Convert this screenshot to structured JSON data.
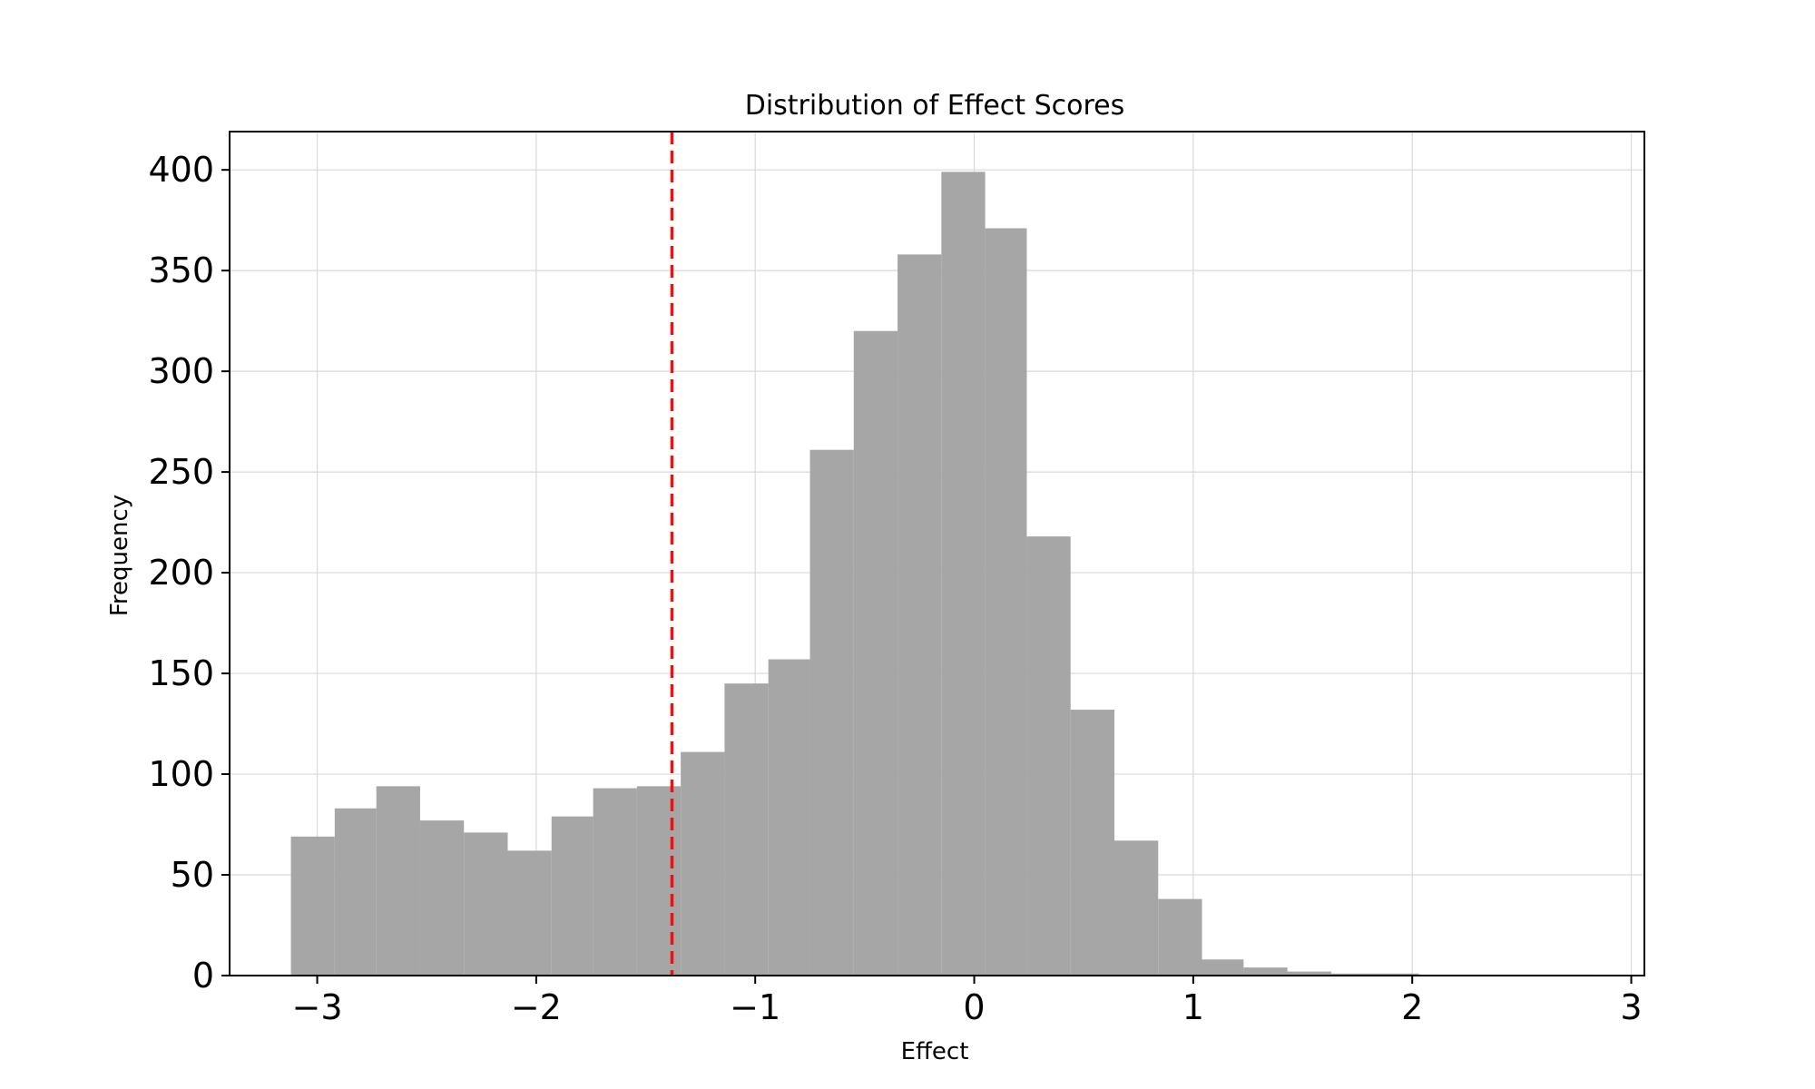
{
  "chart_data": {
    "type": "bar",
    "title": "Distribution of Effect Scores",
    "xlabel": "Effect",
    "ylabel": "Frequency",
    "xlim": [
      -3.4,
      3.06
    ],
    "ylim": [
      0,
      419
    ],
    "x_ticks": [
      -3,
      -2,
      -1,
      0,
      1,
      2,
      3
    ],
    "x_tick_labels": [
      "−3",
      "−2",
      "−1",
      "0",
      "1",
      "2",
      "3"
    ],
    "y_ticks": [
      0,
      50,
      100,
      150,
      200,
      250,
      300,
      350,
      400
    ],
    "y_tick_labels": [
      "0",
      "50",
      "100",
      "150",
      "200",
      "250",
      "300",
      "350",
      "400"
    ],
    "grid": true,
    "bar_color": "#a6a6a6",
    "bins": [
      {
        "x0": -3.12,
        "x1": -2.92,
        "value": 69
      },
      {
        "x0": -2.92,
        "x1": -2.73,
        "value": 83
      },
      {
        "x0": -2.73,
        "x1": -2.53,
        "value": 94
      },
      {
        "x0": -2.53,
        "x1": -2.33,
        "value": 77
      },
      {
        "x0": -2.33,
        "x1": -2.13,
        "value": 71
      },
      {
        "x0": -2.13,
        "x1": -1.93,
        "value": 62
      },
      {
        "x0": -1.93,
        "x1": -1.74,
        "value": 79
      },
      {
        "x0": -1.74,
        "x1": -1.54,
        "value": 93
      },
      {
        "x0": -1.54,
        "x1": -1.34,
        "value": 94
      },
      {
        "x0": -1.34,
        "x1": -1.14,
        "value": 111
      },
      {
        "x0": -1.14,
        "x1": -0.94,
        "value": 145
      },
      {
        "x0": -0.94,
        "x1": -0.75,
        "value": 157
      },
      {
        "x0": -0.75,
        "x1": -0.55,
        "value": 261
      },
      {
        "x0": -0.55,
        "x1": -0.35,
        "value": 320
      },
      {
        "x0": -0.35,
        "x1": -0.15,
        "value": 358
      },
      {
        "x0": -0.15,
        "x1": 0.05,
        "value": 399
      },
      {
        "x0": 0.05,
        "x1": 0.24,
        "value": 371
      },
      {
        "x0": 0.24,
        "x1": 0.44,
        "value": 218
      },
      {
        "x0": 0.44,
        "x1": 0.64,
        "value": 132
      },
      {
        "x0": 0.64,
        "x1": 0.84,
        "value": 67
      },
      {
        "x0": 0.84,
        "x1": 1.04,
        "value": 38
      },
      {
        "x0": 1.04,
        "x1": 1.23,
        "value": 8
      },
      {
        "x0": 1.23,
        "x1": 1.43,
        "value": 4
      },
      {
        "x0": 1.43,
        "x1": 1.63,
        "value": 2
      },
      {
        "x0": 1.63,
        "x1": 1.83,
        "value": 1
      },
      {
        "x0": 1.83,
        "x1": 2.03,
        "value": 1
      },
      {
        "x0": 2.03,
        "x1": 2.22,
        "value": 0.5
      },
      {
        "x0": 2.22,
        "x1": 2.42,
        "value": 0.5
      },
      {
        "x0": 2.42,
        "x1": 2.62,
        "value": 0.5
      },
      {
        "x0": 2.62,
        "x1": 2.82,
        "value": 0.5
      }
    ],
    "reference_line": {
      "x": -1.38,
      "color": "#ee1111",
      "style": "dashed"
    }
  }
}
